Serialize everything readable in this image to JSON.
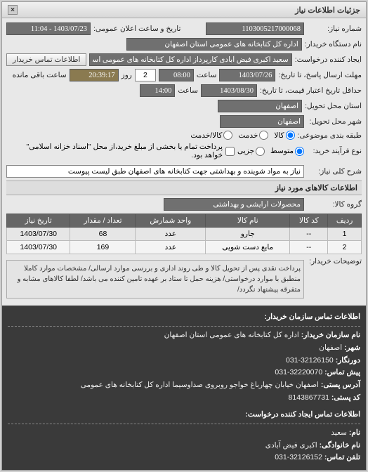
{
  "panel": {
    "title": "جزئیات اطلاعات نیاز",
    "close": "×"
  },
  "header": {
    "reqno_lbl": "شماره نیاز:",
    "reqno": "1103005217000068",
    "announce_lbl": "تاریخ و ساعت اعلان عمومی:",
    "announce": "1403/07/23 - 11:04",
    "buyer_lbl": "نام دستگاه خریدار:",
    "buyer": "اداره کل کتابخانه های عمومی استان اصفهان",
    "creator_lbl": "ایجاد کننده درخواست:",
    "creator": "سعید اکبری فیض آبادی کارپرداز اداره کل کتابخانه های عمومی استان اصفهان",
    "contact_btn": "اطلاعات تماس خریدار",
    "deadline_resp_lbl": "مهلت ارسال پاسخ، تا تاریخ:",
    "deadline_date": "1403/07/26",
    "time_lbl": "ساعت",
    "deadline_time": "08:00",
    "days_lbl": "روز",
    "days": "2",
    "remain": "20:39:17",
    "remain_lbl": "ساعت باقی مانده",
    "validity_lbl": "حداقل تاریخ اعتبار قیمت، تا تاریخ:",
    "validity_date": "1403/08/30",
    "validity_time": "14:00",
    "province_lbl": "استان محل تحویل:",
    "province": "اصفهان",
    "city_lbl": "شهر محل تحویل:",
    "city": "اصفهان",
    "pkg_lbl": "طبقه بندی موضوعی:",
    "pkg_opts": {
      "a": "کالا",
      "b": "خدمت",
      "c": "کالا/خدمت"
    },
    "paytype_lbl": "نوع فرآیند خرید:",
    "pay_opts": {
      "a": "متوسط",
      "b": "جزیی"
    },
    "paynote_chk": "پرداخت تمام یا بخشی از مبلغ خرید،از محل \"اسناد خزانه اسلامی\" خواهد بود.",
    "desc_lbl": "شرح کلی نیاز:",
    "desc": "نیاز به مواد شوینده و بهداشتی جهت کتابخانه های اصفهان طبق لیست پیوست"
  },
  "goods": {
    "title": "اطلاعات کالاهای مورد نیاز",
    "group_lbl": "گروه کالا:",
    "group": "محصولات آرایشی و بهداشتی",
    "cols": {
      "row": "ردیف",
      "code": "کد کالا",
      "name": "نام کالا",
      "unit": "واحد شمارش",
      "qty": "تعداد / مقدار",
      "date": "تاریخ نیاز"
    },
    "rows": [
      {
        "row": "1",
        "code": "--",
        "name": "جارو",
        "unit": "عدد",
        "qty": "68",
        "date": "1403/07/30"
      },
      {
        "row": "2",
        "code": "--",
        "name": "مایع دست شویی",
        "unit": "عدد",
        "qty": "169",
        "date": "1403/07/30"
      }
    ],
    "note_lbl": "توضیحات خریدار:",
    "note": "پرداخت نقدی پس از تحویل کالا و طی روند اداری و بررسی موارد ارسالی/ مشخصات موارد کاملا منطبق با موارد درخواستی/ هزینه حمل تا ستاد بر عهده تامین کننده می باشد/ لطفا کالاهای مشابه و متفرقه پیشنهاد نگردد/"
  },
  "contact": {
    "title1": "اطلاعات تماس سازمان خریدار:",
    "org_lbl": "نام سازمان خریدار:",
    "org": "اداره کل کتابخانه های عمومی استان اصفهان",
    "city_lbl": "شهر:",
    "city": "اصفهان",
    "area_lbl": "دورنگار:",
    "area": "32126150-031",
    "phone_lbl": "پیش تماس:",
    "phone": "32220070-031",
    "addr_lbl": "آدرس پستی:",
    "addr": "اصفهان خیابان چهارباغ خواجو روبروی صداوسیما اداره کل کتابخانه های عمومی",
    "post_lbl": "کد پستی:",
    "post": "8143867731",
    "title2": "اطلاعات تماس ایجاد کننده درخواست:",
    "fname_lbl": "نام:",
    "fname": "سعید",
    "lname_lbl": "نام خانوادگی:",
    "lname": "اکبری فیض آبادی",
    "cphone_lbl": "تلفن تماس:",
    "cphone": "32126152-031"
  }
}
